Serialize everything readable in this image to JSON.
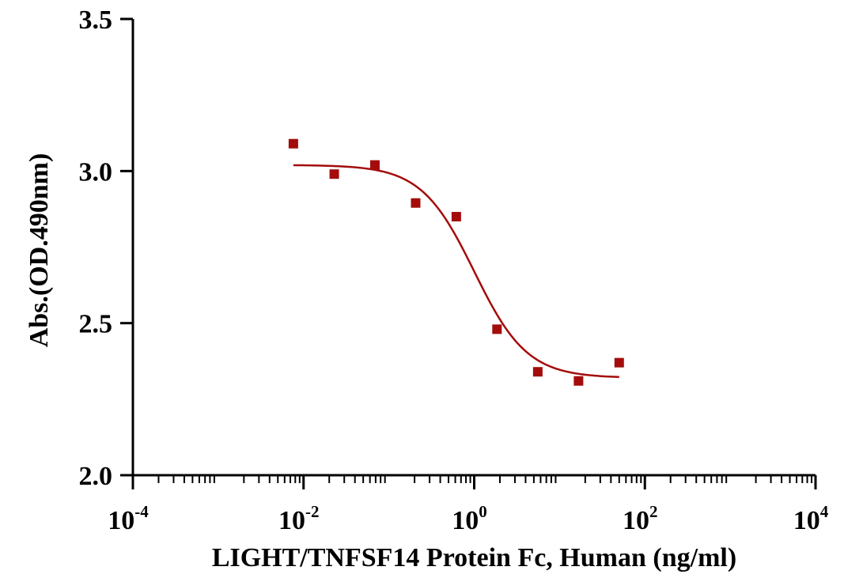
{
  "chart_data": {
    "type": "scatter",
    "title": "",
    "xlabel": "LIGHT/TNFSF14 Protein Fc, Human  (ng/ml)",
    "ylabel": "Abs.(OD.490nm)",
    "x_scale": "log10",
    "xlim": [
      0.0001,
      10000
    ],
    "ylim": [
      2.0,
      3.5
    ],
    "x_ticks": [
      {
        "value": 0.0001,
        "base": "10",
        "exp": "-4"
      },
      {
        "value": 0.01,
        "base": "10",
        "exp": "-2"
      },
      {
        "value": 1,
        "base": "10",
        "exp": "0"
      },
      {
        "value": 100,
        "base": "10",
        "exp": "2"
      },
      {
        "value": 10000,
        "base": "10",
        "exp": "4"
      }
    ],
    "y_ticks": [
      {
        "value": 2.0,
        "label": "2.0"
      },
      {
        "value": 2.5,
        "label": "2.5"
      },
      {
        "value": 3.0,
        "label": "3.0"
      },
      {
        "value": 3.5,
        "label": "3.5"
      }
    ],
    "grid": false,
    "legend": "none",
    "series": [
      {
        "type": "scatter",
        "color": "#a40c0c",
        "points": [
          {
            "x": 0.0076,
            "y": 3.09
          },
          {
            "x": 0.0229,
            "y": 2.99
          },
          {
            "x": 0.0686,
            "y": 3.02
          },
          {
            "x": 0.206,
            "y": 2.895
          },
          {
            "x": 0.617,
            "y": 2.85
          },
          {
            "x": 1.85,
            "y": 2.48
          },
          {
            "x": 5.56,
            "y": 2.34
          },
          {
            "x": 16.7,
            "y": 2.31
          },
          {
            "x": 50,
            "y": 2.37
          }
        ]
      },
      {
        "type": "fit-line",
        "color": "#a40c0c",
        "model": "4PL",
        "top": 3.02,
        "bottom": 2.32,
        "ec50": 1.0,
        "hill": 1.4,
        "x_range": [
          0.0076,
          50
        ]
      }
    ]
  }
}
